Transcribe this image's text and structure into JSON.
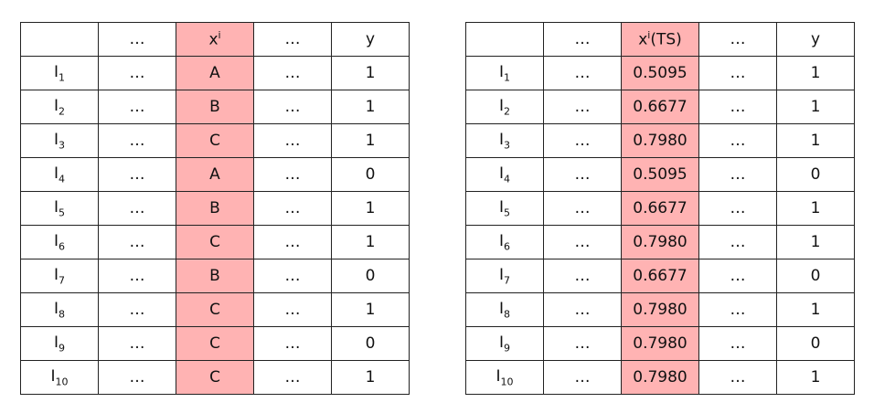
{
  "tables": [
    {
      "header": [
        "",
        "…",
        {
          "text": "x",
          "sup": "i"
        },
        "…",
        "y"
      ],
      "rows": [
        [
          {
            "text": "I",
            "sub": "1"
          },
          "…",
          "A",
          "…",
          "1"
        ],
        [
          {
            "text": "I",
            "sub": "2"
          },
          "…",
          "B",
          "…",
          "1"
        ],
        [
          {
            "text": "I",
            "sub": "3"
          },
          "…",
          "C",
          "…",
          "1"
        ],
        [
          {
            "text": "I",
            "sub": "4"
          },
          "…",
          "A",
          "…",
          "0"
        ],
        [
          {
            "text": "I",
            "sub": "5"
          },
          "…",
          "B",
          "…",
          "1"
        ],
        [
          {
            "text": "I",
            "sub": "6"
          },
          "…",
          "C",
          "…",
          "1"
        ],
        [
          {
            "text": "I",
            "sub": "7"
          },
          "…",
          "B",
          "…",
          "0"
        ],
        [
          {
            "text": "I",
            "sub": "8"
          },
          "…",
          "C",
          "…",
          "1"
        ],
        [
          {
            "text": "I",
            "sub": "9"
          },
          "…",
          "C",
          "…",
          "0"
        ],
        [
          {
            "text": "I",
            "sub": "10"
          },
          "…",
          "C",
          "…",
          "1"
        ]
      ]
    },
    {
      "header": [
        "",
        "…",
        {
          "text": "x",
          "sup": "i",
          "suffix": "(TS)"
        },
        "…",
        "y"
      ],
      "rows": [
        [
          {
            "text": "I",
            "sub": "1"
          },
          "…",
          "0.5095",
          "…",
          "1"
        ],
        [
          {
            "text": "I",
            "sub": "2"
          },
          "…",
          "0.6677",
          "…",
          "1"
        ],
        [
          {
            "text": "I",
            "sub": "3"
          },
          "…",
          "0.7980",
          "…",
          "1"
        ],
        [
          {
            "text": "I",
            "sub": "4"
          },
          "…",
          "0.5095",
          "…",
          "0"
        ],
        [
          {
            "text": "I",
            "sub": "5"
          },
          "…",
          "0.6677",
          "…",
          "1"
        ],
        [
          {
            "text": "I",
            "sub": "6"
          },
          "…",
          "0.7980",
          "…",
          "1"
        ],
        [
          {
            "text": "I",
            "sub": "7"
          },
          "…",
          "0.6677",
          "…",
          "0"
        ],
        [
          {
            "text": "I",
            "sub": "8"
          },
          "…",
          "0.7980",
          "…",
          "1"
        ],
        [
          {
            "text": "I",
            "sub": "9"
          },
          "…",
          "0.7980",
          "…",
          "0"
        ],
        [
          {
            "text": "I",
            "sub": "10"
          },
          "…",
          "0.7980",
          "…",
          "1"
        ]
      ]
    }
  ]
}
